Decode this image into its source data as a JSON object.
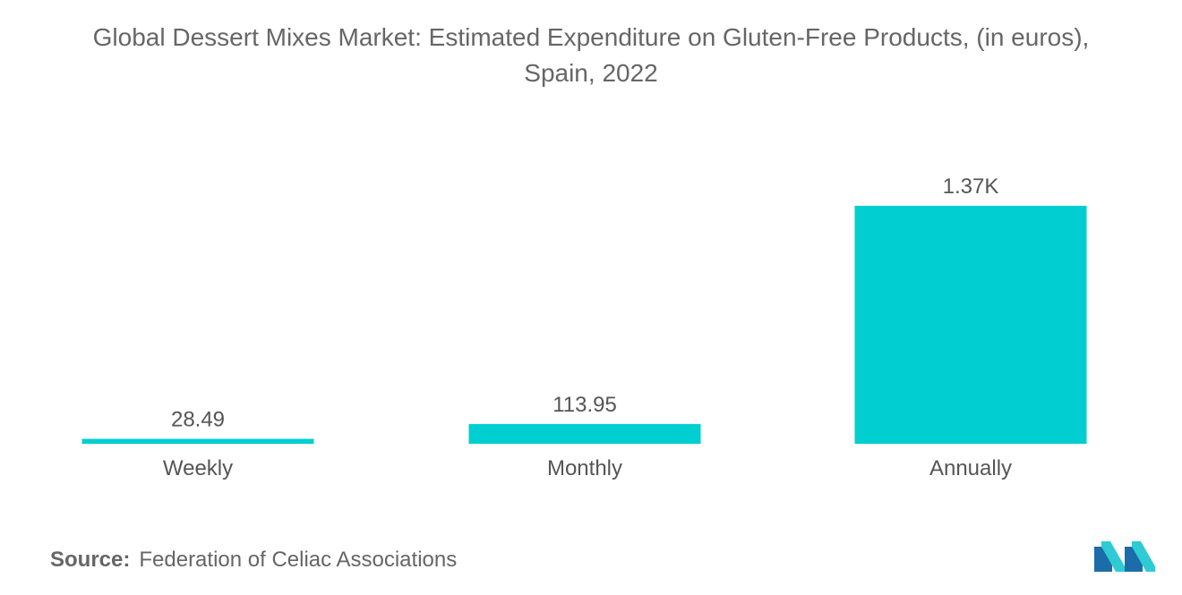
{
  "title": {
    "line1": "Global Dessert Mixes Market: Estimated Expenditure on Gluten-Free Products, (in euros),",
    "line2": "Spain, 2022"
  },
  "source": {
    "label": "Source:",
    "text": "Federation of Celiac Associations"
  },
  "colors": {
    "bar": "#00CED1",
    "text": "#555555",
    "logo_dark": "#1B6CA8",
    "logo_light": "#2ECBD4"
  },
  "chart_data": {
    "type": "bar",
    "title": "Global Dessert Mixes Market: Estimated Expenditure on Gluten-Free Products, (in euros), Spain, 2022",
    "categories": [
      "Weekly",
      "Monthly",
      "Annually"
    ],
    "values": [
      28.49,
      113.95,
      1370
    ],
    "data_labels": [
      "28.49",
      "113.95",
      "1.37K"
    ],
    "xlabel": "",
    "ylabel": "",
    "ylim": [
      0,
      1370
    ],
    "grid": false,
    "legend": "none"
  }
}
